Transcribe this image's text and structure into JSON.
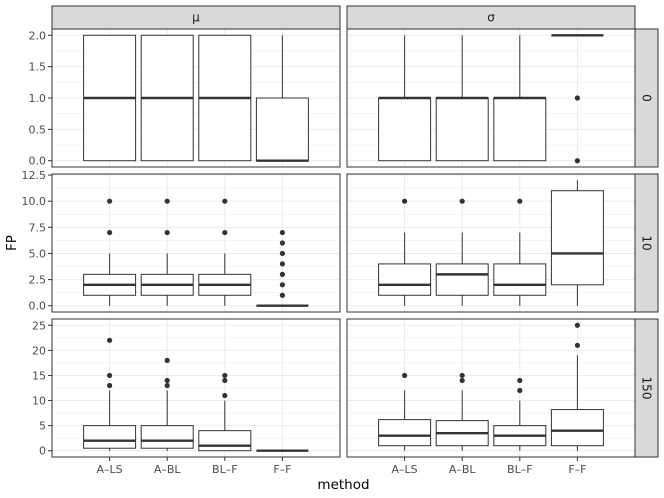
{
  "chart_data": {
    "type": "boxplot",
    "xlabel": "method",
    "ylabel": "FP",
    "categories": [
      "A–LS",
      "A–BL",
      "BL–F",
      "F–F"
    ],
    "facet_columns": [
      "μ",
      "σ"
    ],
    "facet_rows": [
      "0",
      "10",
      "150"
    ],
    "colors": {
      "panel_border": "#333333",
      "strip_fill": "#d9d9d9",
      "grid_major": "#ebebeb",
      "box_fill": "#ffffff",
      "outlier": "#333333"
    },
    "rows": [
      {
        "label": "0",
        "ylim": [
          -0.1,
          2.1
        ],
        "ticks": [
          0.0,
          0.5,
          1.0,
          1.5,
          2.0
        ],
        "tick_labels": [
          "0.0",
          "0.5",
          "1.0",
          "1.5",
          "2.0"
        ],
        "panels": [
          {
            "column": "μ",
            "boxes": [
              {
                "category": "A–LS",
                "min": 0,
                "q1": 0,
                "median": 1,
                "q3": 2,
                "max": 2,
                "outliers": []
              },
              {
                "category": "A–BL",
                "min": 0,
                "q1": 0,
                "median": 1,
                "q3": 2,
                "max": 2,
                "outliers": []
              },
              {
                "category": "BL–F",
                "min": 0,
                "q1": 0,
                "median": 1,
                "q3": 2,
                "max": 2,
                "outliers": []
              },
              {
                "category": "F–F",
                "min": 0,
                "q1": 0,
                "median": 0,
                "q3": 1,
                "max": 2,
                "outliers": []
              }
            ]
          },
          {
            "column": "σ",
            "boxes": [
              {
                "category": "A–LS",
                "min": 0,
                "q1": 0,
                "median": 1,
                "q3": 1,
                "max": 2,
                "outliers": []
              },
              {
                "category": "A–BL",
                "min": 0,
                "q1": 0,
                "median": 1,
                "q3": 1,
                "max": 2,
                "outliers": []
              },
              {
                "category": "BL–F",
                "min": 0,
                "q1": 0,
                "median": 1,
                "q3": 1,
                "max": 2,
                "outliers": []
              },
              {
                "category": "F–F",
                "min": 2,
                "q1": 2,
                "median": 2,
                "q3": 2,
                "max": 2,
                "outliers": [
                  0,
                  1
                ]
              }
            ]
          }
        ]
      },
      {
        "label": "10",
        "ylim": [
          -0.6,
          12.6
        ],
        "ticks": [
          0.0,
          2.5,
          5.0,
          7.5,
          10.0,
          12.5
        ],
        "tick_labels": [
          "0.0",
          "2.5",
          "5.0",
          "7.5",
          "10.0",
          "12.5"
        ],
        "panels": [
          {
            "column": "μ",
            "boxes": [
              {
                "category": "A–LS",
                "min": 0,
                "q1": 1,
                "median": 2,
                "q3": 3,
                "max": 5,
                "outliers": [
                  7,
                  10
                ]
              },
              {
                "category": "A–BL",
                "min": 0,
                "q1": 1,
                "median": 2,
                "q3": 3,
                "max": 5,
                "outliers": [
                  7,
                  10
                ]
              },
              {
                "category": "BL–F",
                "min": 0,
                "q1": 1,
                "median": 2,
                "q3": 3,
                "max": 5,
                "outliers": [
                  7,
                  10
                ]
              },
              {
                "category": "F–F",
                "min": 0,
                "q1": 0,
                "median": 0,
                "q3": 0,
                "max": 0,
                "outliers": [
                  1,
                  2,
                  3,
                  4,
                  5,
                  6,
                  7
                ]
              }
            ]
          },
          {
            "column": "σ",
            "boxes": [
              {
                "category": "A–LS",
                "min": 0,
                "q1": 1,
                "median": 2,
                "q3": 4,
                "max": 7,
                "outliers": [
                  10
                ]
              },
              {
                "category": "A–BL",
                "min": 0,
                "q1": 1,
                "median": 3,
                "q3": 4,
                "max": 7,
                "outliers": [
                  10
                ]
              },
              {
                "category": "BL–F",
                "min": 0,
                "q1": 1,
                "median": 2,
                "q3": 4,
                "max": 7,
                "outliers": [
                  10
                ]
              },
              {
                "category": "F–F",
                "min": 0,
                "q1": 2,
                "median": 5,
                "q3": 11,
                "max": 12,
                "outliers": []
              }
            ]
          }
        ]
      },
      {
        "label": "150",
        "ylim": [
          -1.25,
          26.25
        ],
        "ticks": [
          0,
          5,
          10,
          15,
          20,
          25
        ],
        "tick_labels": [
          "0",
          "5",
          "10",
          "15",
          "20",
          "25"
        ],
        "panels": [
          {
            "column": "μ",
            "boxes": [
              {
                "category": "A–LS",
                "min": 0,
                "q1": 0.5,
                "median": 2,
                "q3": 5,
                "max": 12,
                "outliers": [
                  13,
                  15,
                  22
                ]
              },
              {
                "category": "A–BL",
                "min": 0,
                "q1": 0.5,
                "median": 2,
                "q3": 5,
                "max": 12,
                "outliers": [
                  13,
                  14,
                  18
                ]
              },
              {
                "category": "BL–F",
                "min": 0,
                "q1": 0,
                "median": 1,
                "q3": 4,
                "max": 10,
                "outliers": [
                  11,
                  14,
                  15
                ]
              },
              {
                "category": "F–F",
                "min": 0,
                "q1": 0,
                "median": 0,
                "q3": 0,
                "max": 0,
                "outliers": []
              }
            ]
          },
          {
            "column": "σ",
            "boxes": [
              {
                "category": "A–LS",
                "min": 0,
                "q1": 1,
                "median": 3,
                "q3": 6.2,
                "max": 12,
                "outliers": [
                  15
                ]
              },
              {
                "category": "A–BL",
                "min": 0,
                "q1": 1,
                "median": 3.5,
                "q3": 6,
                "max": 12,
                "outliers": [
                  14,
                  15
                ]
              },
              {
                "category": "BL–F",
                "min": 0,
                "q1": 1,
                "median": 3,
                "q3": 5,
                "max": 10,
                "outliers": [
                  12,
                  14
                ]
              },
              {
                "category": "F–F",
                "min": 0,
                "q1": 1,
                "median": 4,
                "q3": 8.2,
                "max": 19,
                "outliers": [
                  21,
                  25
                ]
              }
            ]
          }
        ]
      }
    ]
  }
}
